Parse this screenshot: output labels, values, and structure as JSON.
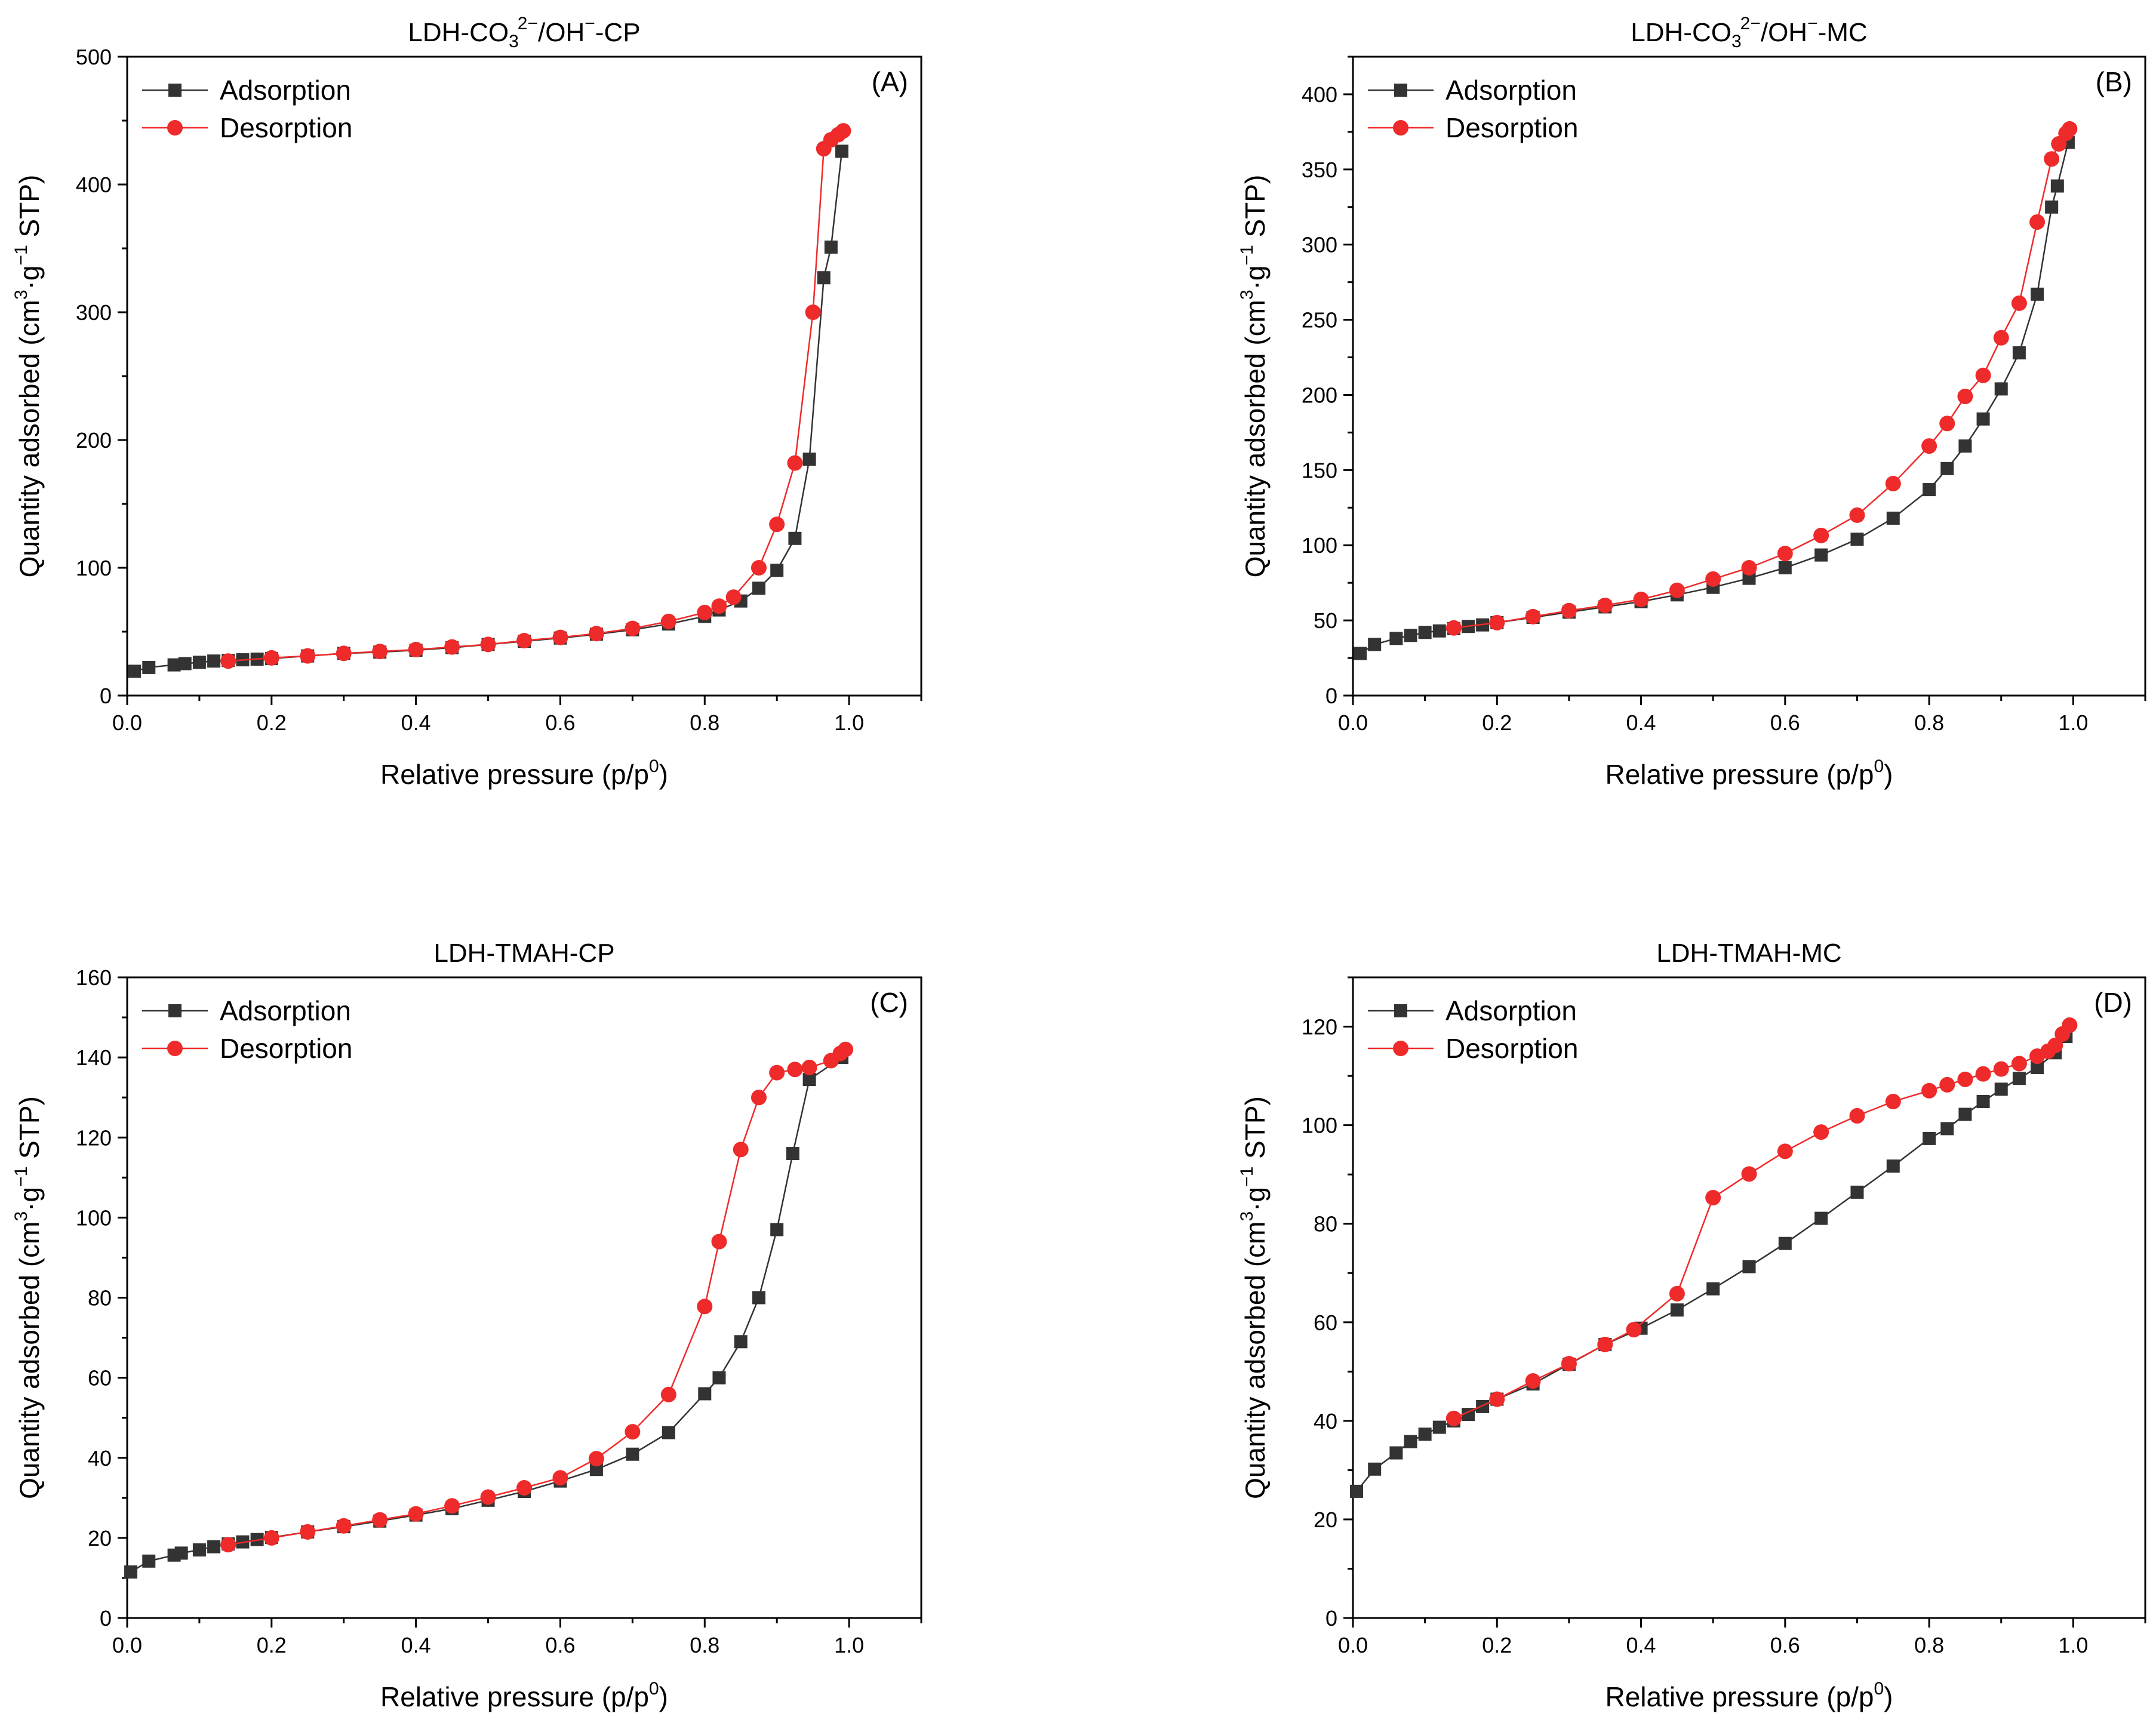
{
  "colors": {
    "adsorption": "#333333",
    "desorption": "#ee2a2a",
    "axis": "#000000"
  },
  "chart_data": [
    {
      "panel": "(A)",
      "type": "line",
      "title": {
        "pre": "LDH-CO",
        "sub": "3",
        "sup": "2−",
        "post": "/OH",
        "sup2": "−",
        "tail": "-CP"
      },
      "xlabel": {
        "text": "Relative pressure (p/p",
        "sup": "0",
        "close": ")"
      },
      "ylabel": {
        "text": "Quantity adsorbed (cm",
        "sup": "3",
        "mid": "·g",
        "sup2": "−1",
        "tail": " STP)"
      },
      "xlim": [
        0,
        1.1
      ],
      "ylim": [
        0,
        500
      ],
      "xticks": [
        0.0,
        0.2,
        0.4,
        0.6,
        0.8,
        1.0
      ],
      "xtick_labels": [
        "0.0",
        "0.2",
        "0.4",
        "0.6",
        "0.8",
        "1.0"
      ],
      "yticks": [
        0,
        100,
        200,
        300,
        400,
        500
      ],
      "ytick_labels": [
        "0",
        "100",
        "200",
        "300",
        "400",
        "500"
      ],
      "legend": [
        "Adsorption",
        "Desorption"
      ],
      "series": [
        {
          "name": "Adsorption",
          "marker": "square",
          "x": [
            0.01,
            0.03,
            0.065,
            0.08,
            0.1,
            0.12,
            0.14,
            0.16,
            0.18,
            0.2,
            0.25,
            0.3,
            0.35,
            0.4,
            0.45,
            0.5,
            0.55,
            0.6,
            0.65,
            0.7,
            0.75,
            0.8,
            0.82,
            0.85,
            0.875,
            0.9,
            0.925,
            0.945,
            0.965,
            0.975,
            0.99
          ],
          "y": [
            19,
            22,
            24,
            25,
            26,
            27,
            27.5,
            28,
            28.5,
            29,
            31,
            33,
            34,
            35.5,
            37.5,
            40,
            42.5,
            45,
            48,
            51.5,
            56,
            62,
            67,
            74,
            84,
            98,
            123,
            185,
            327,
            351,
            426
          ]
        },
        {
          "name": "Desorption",
          "marker": "circle",
          "x": [
            0.14,
            0.2,
            0.25,
            0.3,
            0.35,
            0.4,
            0.45,
            0.5,
            0.55,
            0.6,
            0.65,
            0.7,
            0.75,
            0.8,
            0.82,
            0.84,
            0.875,
            0.9,
            0.925,
            0.95,
            0.965,
            0.975,
            0.985,
            0.992
          ],
          "y": [
            27,
            29.5,
            31,
            33,
            34.5,
            36,
            38,
            40,
            43,
            45.5,
            48.5,
            52.5,
            58,
            65,
            70,
            77,
            100,
            134,
            182,
            300,
            428,
            435,
            439,
            442
          ]
        }
      ]
    },
    {
      "panel": "(B)",
      "type": "line",
      "title": {
        "pre": "LDH-CO",
        "sub": "3",
        "sup": "2−",
        "post": "/OH",
        "sup2": "−",
        "tail": "-MC"
      },
      "xlabel": {
        "text": "Relative pressure (p/p",
        "sup": "0",
        "close": ")"
      },
      "ylabel": {
        "text": "Quantity adsorbed (cm",
        "sup": "3",
        "mid": "·g",
        "sup2": "−1",
        "tail": " STP)"
      },
      "xlim": [
        0,
        1.1
      ],
      "ylim": [
        0,
        425
      ],
      "xticks": [
        0.0,
        0.2,
        0.4,
        0.6,
        0.8,
        1.0
      ],
      "xtick_labels": [
        "0.0",
        "0.2",
        "0.4",
        "0.6",
        "0.8",
        "1.0"
      ],
      "yticks": [
        0,
        50,
        100,
        150,
        200,
        250,
        300,
        350,
        400
      ],
      "ytick_labels": [
        "0",
        "50",
        "100",
        "150",
        "200",
        "250",
        "300",
        "350",
        "400"
      ],
      "legend": [
        "Adsorption",
        "Desorption"
      ],
      "series": [
        {
          "name": "Adsorption",
          "marker": "square",
          "x": [
            0.01,
            0.03,
            0.06,
            0.08,
            0.1,
            0.12,
            0.14,
            0.16,
            0.18,
            0.2,
            0.25,
            0.3,
            0.35,
            0.4,
            0.45,
            0.5,
            0.55,
            0.6,
            0.65,
            0.7,
            0.75,
            0.8,
            0.825,
            0.85,
            0.875,
            0.9,
            0.925,
            0.95,
            0.97,
            0.978,
            0.993
          ],
          "y": [
            28,
            34,
            38,
            40,
            42,
            43,
            44.5,
            46,
            47,
            48.5,
            52,
            55.5,
            59,
            62.5,
            67,
            72,
            78,
            85,
            93.5,
            104,
            118,
            137,
            151,
            166,
            184,
            204,
            228,
            267,
            325,
            339,
            368
          ]
        },
        {
          "name": "Desorption",
          "marker": "circle",
          "x": [
            0.14,
            0.2,
            0.25,
            0.3,
            0.35,
            0.4,
            0.45,
            0.5,
            0.55,
            0.6,
            0.65,
            0.7,
            0.75,
            0.8,
            0.825,
            0.85,
            0.875,
            0.9,
            0.925,
            0.95,
            0.97,
            0.98,
            0.99,
            0.995
          ],
          "y": [
            45,
            48.5,
            52.5,
            56.5,
            60,
            64,
            70,
            77.5,
            85,
            94.5,
            106.5,
            120,
            141,
            166,
            181,
            199,
            213,
            238,
            261,
            315,
            357,
            367,
            374,
            377
          ]
        }
      ]
    },
    {
      "panel": "(C)",
      "type": "line",
      "title": {
        "pre": "LDH-TMAH-CP"
      },
      "xlabel": {
        "text": "Relative pressure (p/p",
        "sup": "0",
        "close": ")"
      },
      "ylabel": {
        "text": "Quantity adsorbed (cm",
        "sup": "3",
        "mid": "·g",
        "sup2": "−1",
        "tail": " STP)"
      },
      "xlim": [
        0,
        1.1
      ],
      "ylim": [
        0,
        160
      ],
      "xticks": [
        0.0,
        0.2,
        0.4,
        0.6,
        0.8,
        1.0
      ],
      "xtick_labels": [
        "0.0",
        "0.2",
        "0.4",
        "0.6",
        "0.8",
        "1.0"
      ],
      "yticks": [
        0,
        20,
        40,
        60,
        80,
        100,
        120,
        140,
        160
      ],
      "ytick_labels": [
        "0",
        "20",
        "40",
        "60",
        "80",
        "100",
        "120",
        "140",
        "160"
      ],
      "legend": [
        "Adsorption",
        "Desorption"
      ],
      "series": [
        {
          "name": "Adsorption",
          "marker": "square",
          "x": [
            0.005,
            0.03,
            0.065,
            0.075,
            0.1,
            0.12,
            0.14,
            0.16,
            0.18,
            0.2,
            0.25,
            0.3,
            0.35,
            0.4,
            0.45,
            0.5,
            0.55,
            0.6,
            0.65,
            0.7,
            0.75,
            0.8,
            0.82,
            0.85,
            0.875,
            0.9,
            0.922,
            0.945,
            0.99
          ],
          "y": [
            11.5,
            14.2,
            15.7,
            16.2,
            17,
            17.8,
            18.5,
            19,
            19.6,
            20.1,
            21.5,
            22.8,
            24.2,
            25.7,
            27.3,
            29.4,
            31.6,
            34.2,
            37.1,
            40.9,
            46.3,
            56,
            60,
            69,
            80,
            97,
            116,
            134.5,
            140
          ]
        },
        {
          "name": "Desorption",
          "marker": "circle",
          "x": [
            0.14,
            0.2,
            0.25,
            0.3,
            0.35,
            0.4,
            0.45,
            0.5,
            0.55,
            0.6,
            0.65,
            0.7,
            0.75,
            0.8,
            0.82,
            0.85,
            0.875,
            0.9,
            0.925,
            0.945,
            0.975,
            0.988,
            0.995
          ],
          "y": [
            18.3,
            20,
            21.5,
            23,
            24.5,
            26,
            28,
            30.2,
            32.5,
            35,
            39.8,
            46.5,
            55.8,
            77.8,
            94,
            117,
            130,
            136.2,
            137,
            137.5,
            139.2,
            141,
            142
          ]
        }
      ]
    },
    {
      "panel": "(D)",
      "type": "line",
      "title": {
        "pre": "LDH-TMAH-MC"
      },
      "xlabel": {
        "text": "Relative pressure (p/p",
        "sup": "0",
        "close": ")"
      },
      "ylabel": {
        "text": "Quantity adsorbed (cm",
        "sup": "3",
        "mid": "·g",
        "sup2": "−1",
        "tail": " STP)"
      },
      "xlim": [
        0,
        1.1
      ],
      "ylim": [
        0,
        130
      ],
      "xticks": [
        0.0,
        0.2,
        0.4,
        0.6,
        0.8,
        1.0
      ],
      "xtick_labels": [
        "0.0",
        "0.2",
        "0.4",
        "0.6",
        "0.8",
        "1.0"
      ],
      "yticks": [
        0,
        20,
        40,
        60,
        80,
        100,
        120
      ],
      "ytick_labels": [
        "0",
        "20",
        "40",
        "60",
        "80",
        "100",
        "120"
      ],
      "legend": [
        "Adsorption",
        "Desorption"
      ],
      "series": [
        {
          "name": "Adsorption",
          "marker": "square",
          "x": [
            0.005,
            0.03,
            0.06,
            0.08,
            0.1,
            0.12,
            0.14,
            0.16,
            0.18,
            0.2,
            0.25,
            0.3,
            0.35,
            0.4,
            0.45,
            0.5,
            0.55,
            0.6,
            0.65,
            0.7,
            0.75,
            0.8,
            0.825,
            0.85,
            0.875,
            0.9,
            0.925,
            0.95,
            0.975,
            0.99
          ],
          "y": [
            25.7,
            30.2,
            33.5,
            35.8,
            37.3,
            38.7,
            40,
            41.3,
            42.9,
            44.4,
            47.5,
            51.5,
            55.5,
            58.8,
            62.5,
            66.8,
            71.3,
            76,
            81.1,
            86.4,
            91.7,
            97.3,
            99.3,
            102.2,
            104.8,
            107.3,
            109.5,
            111.7,
            114.7,
            118
          ]
        },
        {
          "name": "Desorption",
          "marker": "circle",
          "x": [
            0.14,
            0.2,
            0.25,
            0.3,
            0.35,
            0.39,
            0.45,
            0.5,
            0.55,
            0.6,
            0.65,
            0.7,
            0.75,
            0.8,
            0.825,
            0.85,
            0.875,
            0.9,
            0.925,
            0.95,
            0.965,
            0.975,
            0.985,
            0.995
          ],
          "y": [
            40.5,
            44.4,
            48.1,
            51.6,
            55.5,
            58.5,
            65.8,
            85.3,
            90.1,
            94.7,
            98.6,
            101.9,
            104.8,
            107,
            108.2,
            109.3,
            110.4,
            111.4,
            112.5,
            114,
            115,
            116.2,
            118.5,
            120.3
          ]
        }
      ]
    }
  ]
}
